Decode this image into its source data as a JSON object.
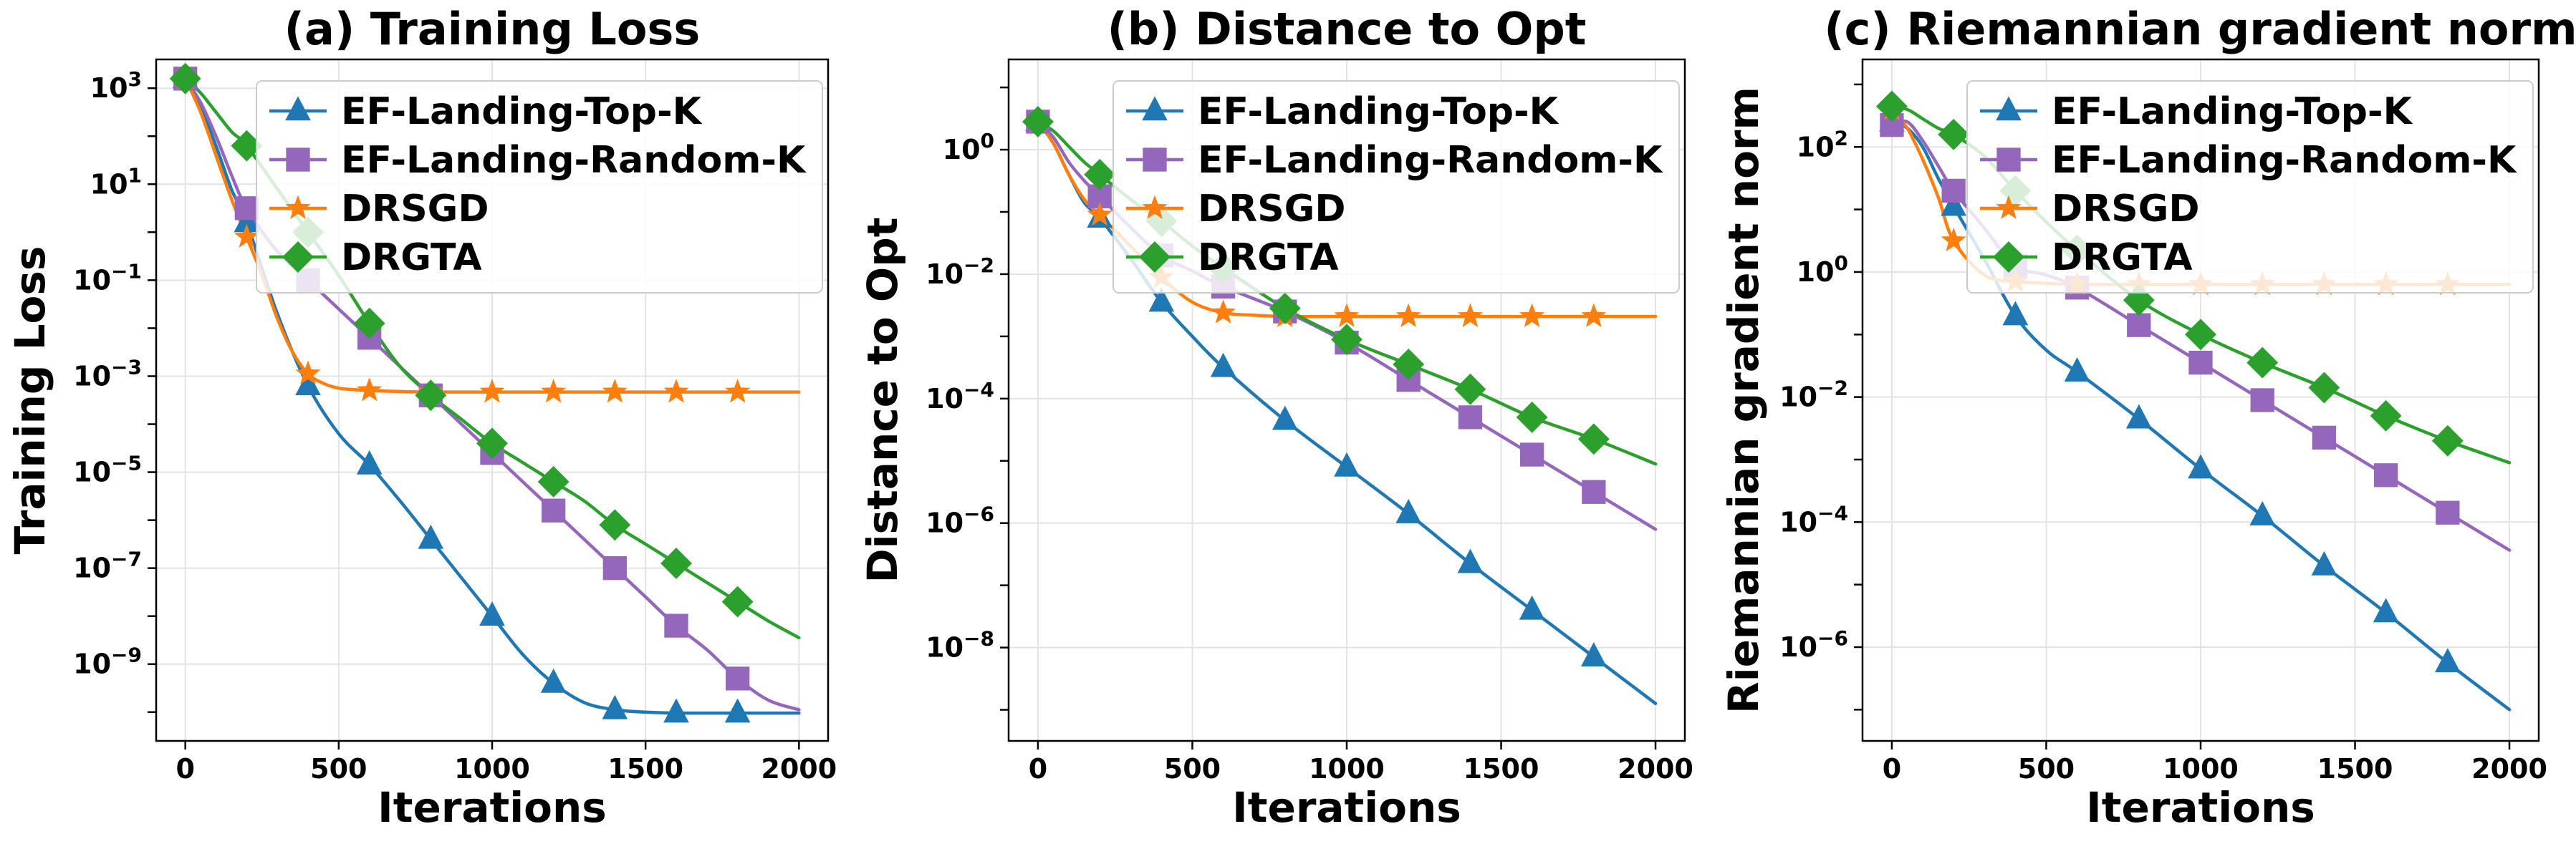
{
  "chart_data": [
    {
      "type": "line",
      "title": "(a) Training Loss",
      "xlabel": "Iterations",
      "ylabel": "Training Loss",
      "xlim": [
        -95,
        2095
      ],
      "ylim_log10": [
        -10.6,
        3.6
      ],
      "yscale": "log",
      "xticks": [
        0,
        500,
        1000,
        1500,
        2000
      ],
      "xtick_labels": [
        "0",
        "500",
        "1000",
        "1500",
        "2000"
      ],
      "yticks_log10": [
        3,
        1,
        -1,
        -3,
        -5,
        -7,
        -9
      ],
      "ytick_labels": [
        {
          "base": "10",
          "exp": "3"
        },
        {
          "base": "10",
          "exp": "1"
        },
        {
          "base": "10",
          "exp": "−1"
        },
        {
          "base": "10",
          "exp": "−3"
        },
        {
          "base": "10",
          "exp": "−5"
        },
        {
          "base": "10",
          "exp": "−7"
        },
        {
          "base": "10",
          "exp": "−9"
        }
      ],
      "legend_position": "top-right",
      "series": [
        {
          "name": "EF-Landing-Top-K",
          "color": "#1f77b4",
          "marker": "triangle",
          "x": [
            0,
            50,
            100,
            150,
            200,
            300,
            400,
            500,
            600,
            700,
            800,
            900,
            1000,
            1100,
            1200,
            1300,
            1400,
            1500,
            1600,
            1700,
            1800,
            1900,
            2000
          ],
          "y_log10": [
            3.2,
            2.6,
            1.8,
            0.9,
            0.2,
            -1.7,
            -3.2,
            -4.2,
            -4.85,
            -5.6,
            -6.4,
            -7.2,
            -8.0,
            -8.8,
            -9.4,
            -9.8,
            -9.95,
            -10.0,
            -10.02,
            -10.02,
            -10.02,
            -10.02,
            -10.02
          ],
          "markers_x": [
            0,
            200,
            400,
            600,
            800,
            1000,
            1200,
            1400,
            1600,
            1800
          ]
        },
        {
          "name": "EF-Landing-Random-K",
          "color": "#9467bd",
          "marker": "square",
          "x": [
            0,
            50,
            100,
            150,
            200,
            300,
            400,
            500,
            600,
            700,
            800,
            900,
            1000,
            1100,
            1200,
            1300,
            1400,
            1500,
            1600,
            1700,
            1800,
            1900,
            2000
          ],
          "y_log10": [
            3.2,
            2.7,
            2.0,
            1.2,
            0.5,
            -0.4,
            -1.0,
            -1.6,
            -2.2,
            -2.8,
            -3.4,
            -4.0,
            -4.6,
            -5.2,
            -5.8,
            -6.4,
            -7.0,
            -7.6,
            -8.2,
            -8.7,
            -9.3,
            -9.75,
            -9.95
          ],
          "markers_x": [
            0,
            200,
            400,
            600,
            800,
            1000,
            1200,
            1400,
            1600,
            1800
          ]
        },
        {
          "name": "DRSGD",
          "color": "#ff7f0e",
          "marker": "star",
          "x": [
            0,
            50,
            100,
            150,
            200,
            250,
            300,
            350,
            400,
            450,
            500,
            550,
            600,
            700,
            800,
            900,
            1000,
            1200,
            1400,
            1600,
            1800,
            2000
          ],
          "y_log10": [
            3.2,
            2.5,
            1.6,
            0.7,
            -0.1,
            -0.9,
            -1.8,
            -2.5,
            -2.95,
            -3.15,
            -3.25,
            -3.28,
            -3.3,
            -3.32,
            -3.33,
            -3.33,
            -3.33,
            -3.33,
            -3.33,
            -3.33,
            -3.33,
            -3.33
          ],
          "markers_x": [
            0,
            200,
            400,
            600,
            800,
            1000,
            1200,
            1400,
            1600,
            1800
          ]
        },
        {
          "name": "DRGTA",
          "color": "#2ca02c",
          "marker": "diamond",
          "x": [
            0,
            50,
            100,
            150,
            200,
            300,
            400,
            500,
            600,
            700,
            800,
            900,
            1000,
            1100,
            1200,
            1300,
            1400,
            1500,
            1600,
            1700,
            1800,
            1900,
            2000
          ],
          "y_log10": [
            3.2,
            2.9,
            2.5,
            2.1,
            1.8,
            0.9,
            0.0,
            -0.9,
            -1.9,
            -2.8,
            -3.4,
            -3.9,
            -4.4,
            -4.8,
            -5.2,
            -5.6,
            -6.1,
            -6.5,
            -6.9,
            -7.3,
            -7.7,
            -8.1,
            -8.45
          ],
          "markers_x": [
            0,
            200,
            400,
            600,
            800,
            1000,
            1200,
            1400,
            1600,
            1800
          ]
        }
      ]
    },
    {
      "type": "line",
      "title": "(b) Distance to Opt",
      "xlabel": "Iterations",
      "ylabel": "Distance to Opt",
      "xlim": [
        -95,
        2095
      ],
      "ylim_log10": [
        -9.5,
        1.45
      ],
      "yscale": "log",
      "xticks": [
        0,
        500,
        1000,
        1500,
        2000
      ],
      "xtick_labels": [
        "0",
        "500",
        "1000",
        "1500",
        "2000"
      ],
      "yticks_log10": [
        0,
        -2,
        -4,
        -6,
        -8
      ],
      "ytick_labels": [
        {
          "base": "10",
          "exp": "0"
        },
        {
          "base": "10",
          "exp": "−2"
        },
        {
          "base": "10",
          "exp": "−4"
        },
        {
          "base": "10",
          "exp": "−6"
        },
        {
          "base": "10",
          "exp": "−8"
        }
      ],
      "legend_position": "top-right",
      "series": [
        {
          "name": "EF-Landing-Top-K",
          "color": "#1f77b4",
          "marker": "triangle",
          "x": [
            0,
            50,
            100,
            150,
            200,
            300,
            400,
            500,
            600,
            800,
            1000,
            1200,
            1400,
            1600,
            1800,
            2000
          ],
          "y_log10": [
            0.45,
            0.1,
            -0.4,
            -0.85,
            -1.1,
            -1.75,
            -2.45,
            -3.0,
            -3.5,
            -4.35,
            -5.1,
            -5.85,
            -6.65,
            -7.4,
            -8.15,
            -8.9
          ],
          "markers_x": [
            0,
            200,
            400,
            600,
            800,
            1000,
            1200,
            1400,
            1600,
            1800
          ]
        },
        {
          "name": "EF-Landing-Random-K",
          "color": "#9467bd",
          "marker": "square",
          "x": [
            0,
            50,
            100,
            150,
            200,
            300,
            400,
            500,
            600,
            800,
            1000,
            1200,
            1400,
            1600,
            1800,
            2000
          ],
          "y_log10": [
            0.45,
            0.2,
            -0.2,
            -0.5,
            -0.75,
            -1.25,
            -1.7,
            -1.95,
            -2.2,
            -2.6,
            -3.1,
            -3.7,
            -4.3,
            -4.9,
            -5.5,
            -6.1
          ],
          "markers_x": [
            0,
            200,
            400,
            600,
            800,
            1000,
            1200,
            1400,
            1600,
            1800
          ]
        },
        {
          "name": "DRSGD",
          "color": "#ff7f0e",
          "marker": "star",
          "x": [
            0,
            50,
            100,
            150,
            200,
            300,
            400,
            500,
            600,
            700,
            800,
            1000,
            1200,
            1400,
            1600,
            1800,
            2000
          ],
          "y_log10": [
            0.45,
            0.1,
            -0.4,
            -0.8,
            -1.05,
            -1.55,
            -2.05,
            -2.45,
            -2.62,
            -2.66,
            -2.68,
            -2.68,
            -2.68,
            -2.68,
            -2.68,
            -2.68,
            -2.68
          ],
          "markers_x": [
            0,
            200,
            400,
            600,
            800,
            1000,
            1200,
            1400,
            1600,
            1800
          ]
        },
        {
          "name": "DRGTA",
          "color": "#2ca02c",
          "marker": "diamond",
          "x": [
            0,
            50,
            100,
            150,
            200,
            300,
            400,
            500,
            600,
            800,
            1000,
            1200,
            1400,
            1600,
            1800,
            2000
          ],
          "y_log10": [
            0.45,
            0.3,
            0.05,
            -0.2,
            -0.4,
            -0.8,
            -1.15,
            -1.55,
            -1.9,
            -2.55,
            -3.05,
            -3.45,
            -3.85,
            -4.3,
            -4.65,
            -5.05
          ],
          "markers_x": [
            0,
            200,
            400,
            600,
            800,
            1000,
            1200,
            1400,
            1600,
            1800
          ]
        }
      ]
    },
    {
      "type": "line",
      "title": "(c) Riemannian gradient norm",
      "xlabel": "Iterations",
      "ylabel": "Riemannian gradient norm",
      "xlim": [
        -95,
        2095
      ],
      "ylim_log10": [
        -7.5,
        3.4
      ],
      "yscale": "log",
      "xticks": [
        0,
        500,
        1000,
        1500,
        2000
      ],
      "xtick_labels": [
        "0",
        "500",
        "1000",
        "1500",
        "2000"
      ],
      "yticks_log10": [
        2,
        0,
        -2,
        -4,
        -6
      ],
      "ytick_labels": [
        {
          "base": "10",
          "exp": "2"
        },
        {
          "base": "10",
          "exp": "0"
        },
        {
          "base": "10",
          "exp": "−2"
        },
        {
          "base": "10",
          "exp": "−4"
        },
        {
          "base": "10",
          "exp": "−6"
        }
      ],
      "legend_position": "top-right",
      "series": [
        {
          "name": "EF-Landing-Top-K",
          "color": "#1f77b4",
          "marker": "triangle",
          "x": [
            0,
            50,
            100,
            150,
            200,
            300,
            400,
            500,
            600,
            800,
            1000,
            1200,
            1400,
            1600,
            1800,
            2000
          ],
          "y_log10": [
            2.4,
            2.3,
            2.0,
            1.5,
            1.05,
            0.2,
            -0.7,
            -1.25,
            -1.6,
            -2.35,
            -3.15,
            -3.9,
            -4.7,
            -5.45,
            -6.25,
            -7.0
          ],
          "markers_x": [
            0,
            200,
            400,
            600,
            800,
            1000,
            1200,
            1400,
            1600,
            1800
          ]
        },
        {
          "name": "EF-Landing-Random-K",
          "color": "#9467bd",
          "marker": "square",
          "x": [
            0,
            50,
            100,
            150,
            200,
            300,
            400,
            500,
            600,
            800,
            1000,
            1200,
            1400,
            1600,
            1800,
            2000
          ],
          "y_log10": [
            2.35,
            2.4,
            2.1,
            1.7,
            1.3,
            0.7,
            0.1,
            -0.05,
            -0.25,
            -0.85,
            -1.45,
            -2.05,
            -2.65,
            -3.25,
            -3.85,
            -4.45
          ],
          "markers_x": [
            0,
            200,
            400,
            600,
            800,
            1000,
            1200,
            1400,
            1600,
            1800
          ]
        },
        {
          "name": "DRSGD",
          "color": "#ff7f0e",
          "marker": "star",
          "x": [
            0,
            50,
            100,
            150,
            200,
            300,
            400,
            500,
            600,
            800,
            1000,
            1200,
            1400,
            1600,
            1800,
            2000
          ],
          "y_log10": [
            2.6,
            2.3,
            1.8,
            1.2,
            0.5,
            -0.05,
            -0.15,
            -0.18,
            -0.2,
            -0.2,
            -0.2,
            -0.2,
            -0.2,
            -0.2,
            -0.2,
            -0.2
          ],
          "markers_x": [
            0,
            200,
            400,
            600,
            800,
            1000,
            1200,
            1400,
            1600,
            1800
          ]
        },
        {
          "name": "DRGTA",
          "color": "#2ca02c",
          "marker": "diamond",
          "x": [
            0,
            50,
            100,
            150,
            200,
            300,
            400,
            500,
            600,
            800,
            1000,
            1200,
            1400,
            1600,
            1800,
            2000
          ],
          "y_log10": [
            2.65,
            2.6,
            2.45,
            2.3,
            2.2,
            1.85,
            1.3,
            0.8,
            0.35,
            -0.45,
            -1.0,
            -1.45,
            -1.85,
            -2.3,
            -2.7,
            -3.05
          ],
          "markers_x": [
            0,
            200,
            400,
            600,
            800,
            1000,
            1200,
            1400,
            1600,
            1800
          ]
        }
      ]
    }
  ]
}
